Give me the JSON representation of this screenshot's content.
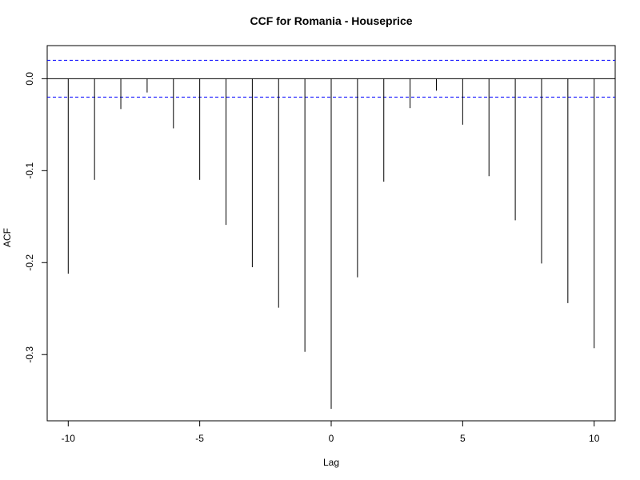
{
  "chart_data": {
    "type": "bar",
    "title": "CCF for Romania - Houseprice",
    "xlabel": "Lag",
    "ylabel": "ACF",
    "xlim": [
      -10.8,
      10.8
    ],
    "ylim": [
      -0.372,
      0.036
    ],
    "x_ticks": [
      -10,
      -5,
      0,
      5,
      10
    ],
    "x_tick_labels": [
      "-10",
      "-5",
      "0",
      "5",
      "10"
    ],
    "y_ticks": [
      0.0,
      -0.1,
      -0.2,
      -0.3
    ],
    "y_tick_labels": [
      "0.0",
      "-0.1",
      "-0.2",
      "-0.3"
    ],
    "lags": [
      -10,
      -9,
      -8,
      -7,
      -6,
      -5,
      -4,
      -3,
      -2,
      -1,
      0,
      1,
      2,
      3,
      4,
      5,
      6,
      7,
      8,
      9,
      10
    ],
    "values": [
      -0.212,
      -0.11,
      -0.033,
      -0.015,
      -0.054,
      -0.11,
      -0.159,
      -0.205,
      -0.249,
      -0.297,
      -0.359,
      -0.216,
      -0.112,
      -0.032,
      -0.013,
      -0.05,
      -0.106,
      -0.154,
      -0.201,
      -0.244,
      -0.293
    ],
    "confidence_bounds": [
      0.02,
      -0.02
    ],
    "grid": false,
    "colors": {
      "bars": "#000000",
      "confidence": "#0000ff",
      "zero_line": "#000000",
      "frame": "#000000"
    }
  }
}
